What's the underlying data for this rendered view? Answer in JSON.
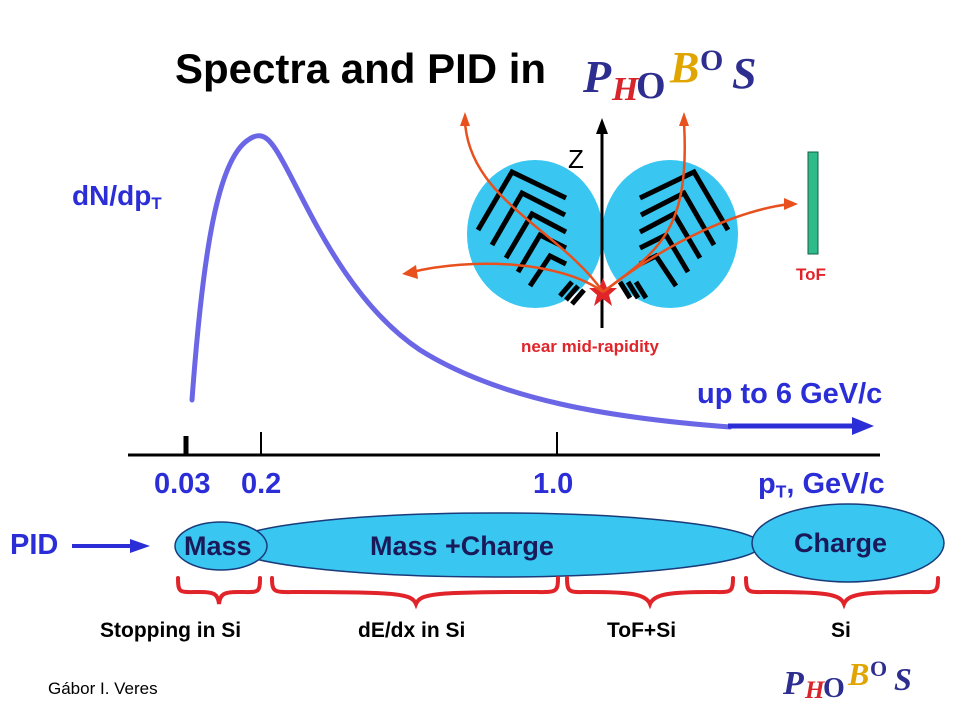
{
  "title": "Spectra and PID in",
  "logo_text": "PHOBOS",
  "axis": {
    "ylabel_main": "dN/dp",
    "ylabel_sub": "T",
    "xlabel_pre": "p",
    "xlabel_sub": "T",
    "xlabel_post": ", GeV/c",
    "ticks": [
      "0.03",
      "0.2",
      "1.0"
    ]
  },
  "annotations": {
    "up_to": "up to 6 GeV/c",
    "z_label": "Z",
    "tof_label": "ToF",
    "near_mid": "near mid-rapidity"
  },
  "pid": {
    "label": "PID",
    "mass": "Mass",
    "mass_charge": "Mass +Charge",
    "charge": "Charge"
  },
  "methods": [
    "Stopping in Si",
    "dE/dx in Si",
    "ToF+Si",
    "Si"
  ],
  "author": "Gábor I. Veres",
  "colors": {
    "blue_text": "#2b2ed6",
    "curve": "#6a66e6",
    "red": "#e0242a",
    "ellipse_fill": "#39c6f0",
    "tof_bar": "#2fba8a",
    "track": "#e8501e"
  }
}
